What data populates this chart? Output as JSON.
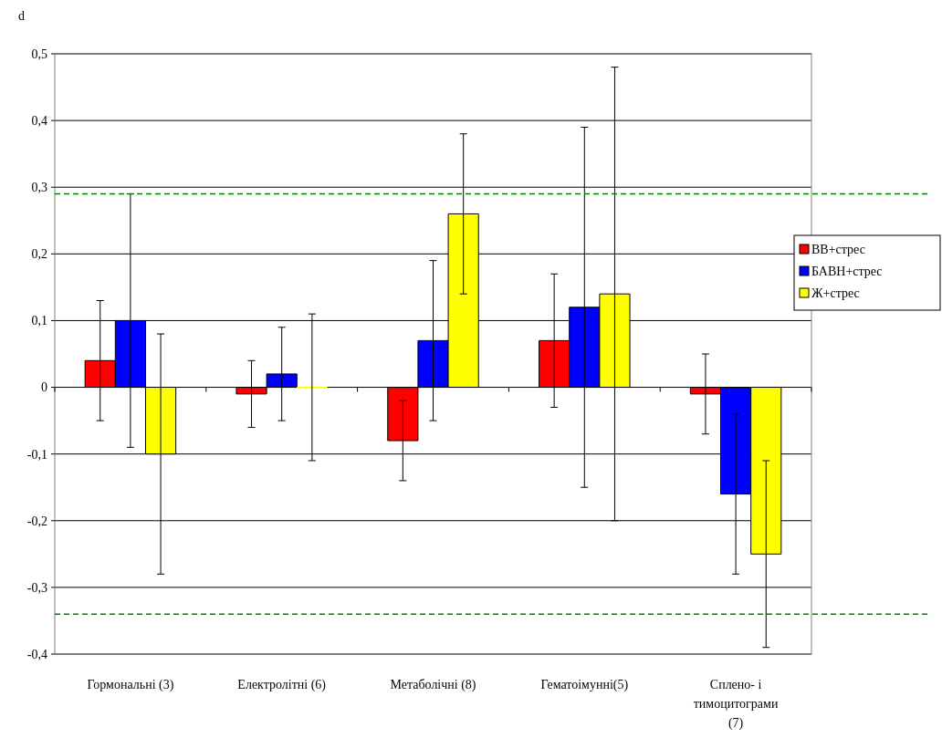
{
  "chart_data": {
    "type": "bar",
    "ylabel": "d",
    "categories": [
      "Гормональні (3)",
      "Електролітні (6)",
      "Метаболічні (8)",
      "Гематоімунні(5)",
      "Сплено- і тимоцитограми (7)"
    ],
    "series": [
      {
        "name": "ВВ+стрес",
        "color": "#ff0000",
        "values": [
          0.04,
          -0.01,
          -0.08,
          0.07,
          -0.01
        ],
        "errors": [
          [
            -0.05,
            0.13
          ],
          [
            -0.06,
            0.04
          ],
          [
            -0.14,
            -0.02
          ],
          [
            -0.03,
            0.17
          ],
          [
            -0.07,
            0.05
          ]
        ]
      },
      {
        "name": "БАВН+стрес",
        "color": "#0000ff",
        "values": [
          0.1,
          0.02,
          0.07,
          0.12,
          -0.16
        ],
        "errors": [
          [
            -0.09,
            0.29
          ],
          [
            -0.05,
            0.09
          ],
          [
            -0.05,
            0.19
          ],
          [
            -0.15,
            0.39
          ],
          [
            -0.28,
            -0.04
          ]
        ]
      },
      {
        "name": "Ж+стрес",
        "color": "#ffff00",
        "values": [
          -0.1,
          0,
          0.26,
          0.14,
          -0.25
        ],
        "errors": [
          [
            -0.28,
            0.08
          ],
          [
            -0.11,
            0.11
          ],
          [
            0.14,
            0.38
          ],
          [
            -0.2,
            0.48
          ],
          [
            -0.39,
            -0.11
          ]
        ]
      }
    ],
    "ylim": [
      -0.4,
      0.5
    ],
    "yticks": [
      {
        "value": -0.4,
        "label": "-0,4"
      },
      {
        "value": -0.3,
        "label": "-0,3"
      },
      {
        "value": -0.2,
        "label": "-0,2"
      },
      {
        "value": -0.1,
        "label": "-0,1"
      },
      {
        "value": 0,
        "label": "0"
      },
      {
        "value": 0.1,
        "label": "0,1"
      },
      {
        "value": 0.2,
        "label": "0,2"
      },
      {
        "value": 0.3,
        "label": "0,3"
      },
      {
        "value": 0.4,
        "label": "0,4"
      },
      {
        "value": 0.5,
        "label": "0,5"
      }
    ],
    "grid": "y",
    "legend": "right",
    "ref_lines": [
      {
        "axis": "y",
        "value": 0.29,
        "color": "#008000",
        "line_style": "dashed"
      },
      {
        "axis": "y",
        "value": -0.34,
        "color": "#008000",
        "line_style": "dashed"
      }
    ]
  }
}
